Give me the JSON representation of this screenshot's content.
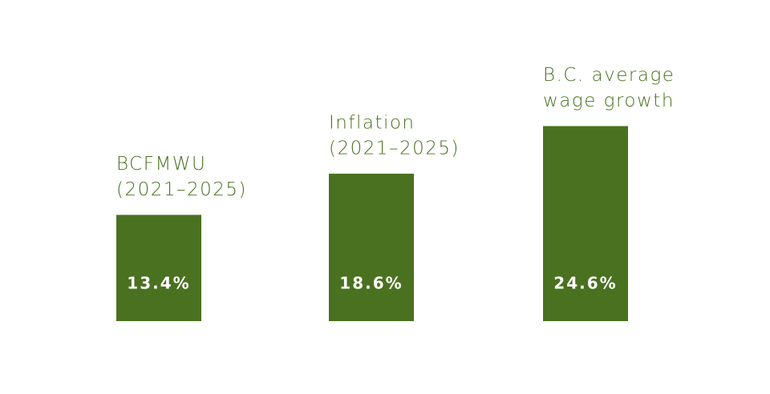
{
  "chart_data": {
    "type": "bar",
    "categories": [
      [
        "BCFMWU",
        "(2021–2025)"
      ],
      [
        "Inflation",
        "(2021–2025)"
      ],
      [
        "B.C. average",
        "wage growth"
      ]
    ],
    "values": [
      13.4,
      18.6,
      24.6
    ],
    "value_labels": [
      "13.4%",
      "18.6%",
      "24.6%"
    ],
    "color": "#4a711f"
  }
}
